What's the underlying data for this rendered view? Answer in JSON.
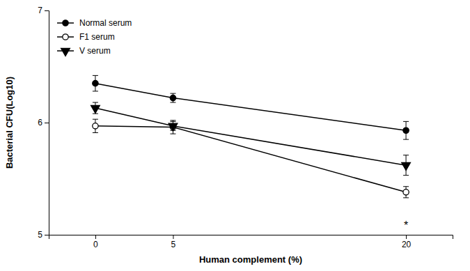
{
  "chart_data": {
    "type": "line",
    "x": [
      0,
      5,
      20
    ],
    "series": [
      {
        "name": "Normal serum",
        "color": "#000000",
        "marker": "circle",
        "values": [
          6.35,
          6.22,
          5.93
        ],
        "errors": [
          0.07,
          0.04,
          0.08
        ]
      },
      {
        "name": "F1 serum",
        "color": "#000000",
        "marker": "open-circle",
        "values": [
          5.97,
          5.96,
          5.38
        ],
        "errors": [
          0.06,
          0.06,
          0.05
        ]
      },
      {
        "name": "V serum",
        "color": "#000000",
        "marker": "triangle-down",
        "values": [
          6.13,
          5.97,
          5.62
        ],
        "errors": [
          0.05,
          0.04,
          0.09
        ]
      }
    ],
    "xlabel": "Human complement (%)",
    "ylabel": "Bacterial CFU(Log10)",
    "xlim": [
      -3,
      23
    ],
    "xticks": [
      0,
      5,
      20
    ],
    "ylim": [
      5,
      7
    ],
    "yticks": [
      5,
      6,
      7
    ],
    "annotations": [
      {
        "text": "*",
        "x": 20,
        "y": 5.12
      }
    ],
    "legend": "upper left",
    "grid": false
  }
}
